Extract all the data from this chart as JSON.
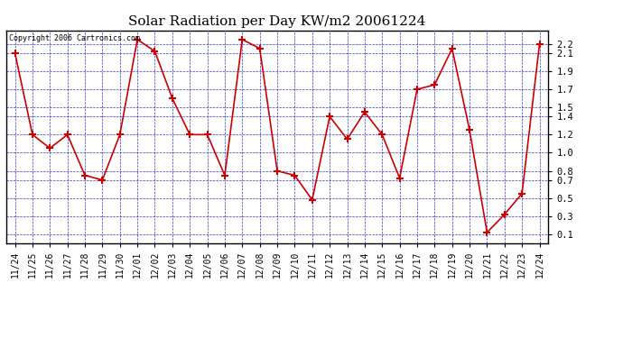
{
  "title": "Solar Radiation per Day KW/m2 20061224",
  "copyright": "Copyright 2006 Cartronics.com",
  "labels": [
    "11/24",
    "11/25",
    "11/26",
    "11/27",
    "11/28",
    "11/29",
    "11/30",
    "12/01",
    "12/02",
    "12/03",
    "12/04",
    "12/05",
    "12/06",
    "12/07",
    "12/08",
    "12/09",
    "12/10",
    "12/11",
    "12/12",
    "12/13",
    "12/14",
    "12/15",
    "12/16",
    "12/17",
    "12/18",
    "12/19",
    "12/20",
    "12/21",
    "12/22",
    "12/23",
    "12/24"
  ],
  "values": [
    2.1,
    1.2,
    1.05,
    1.2,
    0.75,
    0.7,
    1.2,
    2.25,
    2.12,
    1.6,
    1.2,
    1.2,
    0.75,
    2.25,
    2.15,
    0.8,
    0.75,
    0.48,
    1.4,
    1.15,
    1.45,
    1.2,
    0.72,
    1.7,
    1.75,
    2.15,
    1.25,
    0.12,
    0.32,
    0.55,
    2.2
  ],
  "line_color": "#cc0000",
  "marker_color": "#cc0000",
  "bg_color": "#ffffff",
  "grid_color": "#0000cc",
  "title_fontsize": 11,
  "ytick_positions": [
    0.1,
    0.3,
    0.5,
    0.7,
    0.8,
    1.0,
    1.2,
    1.4,
    1.5,
    1.7,
    1.9,
    2.1,
    2.2
  ],
  "ytick_labels": [
    "0.1",
    "0.3",
    "0.5",
    "0.7",
    "0.8",
    "1.0",
    "1.2",
    "1.4",
    "1.5",
    "1.7",
    "1.9",
    "2.1",
    "2.2"
  ],
  "ylim_min": 0.0,
  "ylim_max": 2.35
}
